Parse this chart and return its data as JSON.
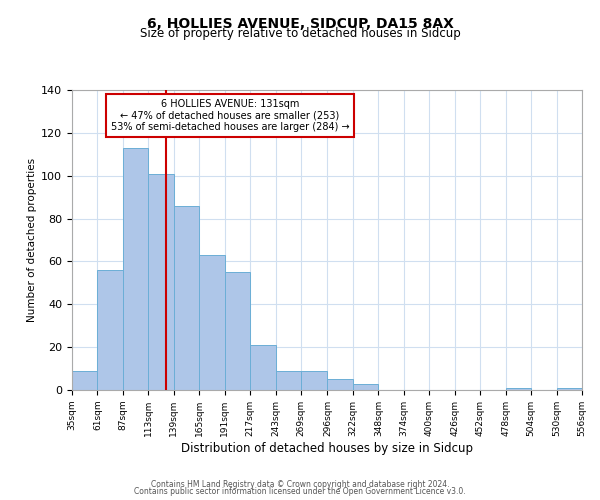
{
  "title": "6, HOLLIES AVENUE, SIDCUP, DA15 8AX",
  "subtitle": "Size of property relative to detached houses in Sidcup",
  "xlabel": "Distribution of detached houses by size in Sidcup",
  "ylabel": "Number of detached properties",
  "bar_color": "#aec6e8",
  "bar_edge_color": "#6baed6",
  "background_color": "#ffffff",
  "grid_color": "#d0dff0",
  "vline_x": 131,
  "vline_color": "#cc0000",
  "annotation_text": "6 HOLLIES AVENUE: 131sqm\n← 47% of detached houses are smaller (253)\n53% of semi-detached houses are larger (284) →",
  "annotation_box_color": "#ffffff",
  "annotation_box_edge_color": "#cc0000",
  "bin_edges": [
    35,
    61,
    87,
    113,
    139,
    165,
    191,
    217,
    243,
    269,
    296,
    322,
    348,
    374,
    400,
    426,
    452,
    478,
    504,
    530,
    556
  ],
  "counts": [
    9,
    56,
    113,
    101,
    86,
    63,
    55,
    21,
    9,
    9,
    5,
    3,
    0,
    0,
    0,
    0,
    0,
    1,
    0,
    1
  ],
  "ylim": [
    0,
    140
  ],
  "yticks": [
    0,
    20,
    40,
    60,
    80,
    100,
    120,
    140
  ],
  "tick_labels": [
    "35sqm",
    "61sqm",
    "87sqm",
    "113sqm",
    "139sqm",
    "165sqm",
    "191sqm",
    "217sqm",
    "243sqm",
    "269sqm",
    "296sqm",
    "322sqm",
    "348sqm",
    "374sqm",
    "400sqm",
    "426sqm",
    "452sqm",
    "478sqm",
    "504sqm",
    "530sqm",
    "556sqm"
  ],
  "footer_line1": "Contains HM Land Registry data © Crown copyright and database right 2024.",
  "footer_line2": "Contains public sector information licensed under the Open Government Licence v3.0."
}
